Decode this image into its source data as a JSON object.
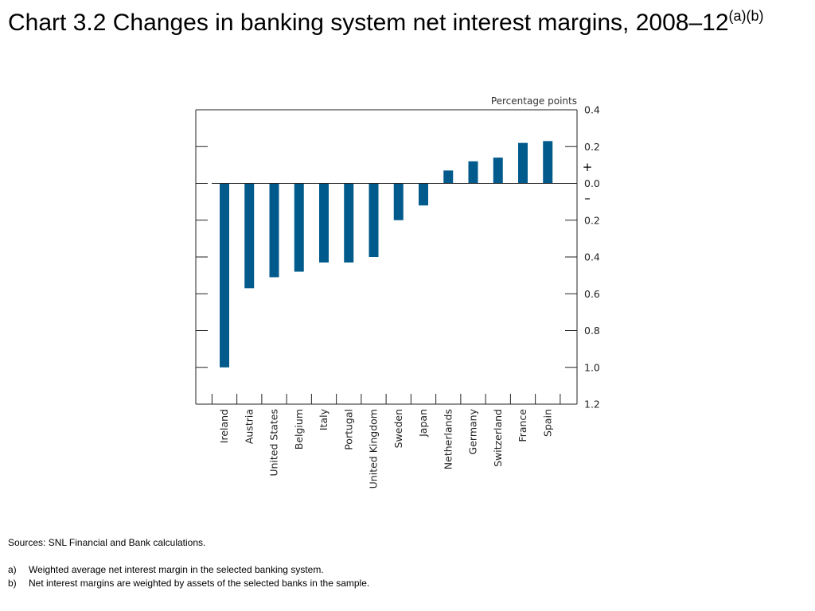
{
  "title": {
    "main": "Chart 3.2  Changes in banking system net interest margins, 2008–12",
    "superscript": "(a)(b)"
  },
  "chart_data": {
    "type": "bar",
    "unit_label": "Percentage points",
    "categories": [
      "Ireland",
      "Austria",
      "United States",
      "Belgium",
      "Italy",
      "Portugal",
      "United Kingdom",
      "Sweden",
      "Japan",
      "Netherlands",
      "Germany",
      "Switzerland",
      "France",
      "Spain"
    ],
    "values": [
      -1.0,
      -0.57,
      -0.51,
      -0.48,
      -0.43,
      -0.43,
      -0.4,
      -0.2,
      -0.12,
      0.07,
      0.12,
      0.14,
      0.22,
      0.23
    ],
    "ylim": [
      -1.2,
      0.4
    ],
    "yticks": [
      0.4,
      0.2,
      0.0,
      -0.2,
      -0.4,
      -0.6,
      -0.8,
      -1.0,
      -1.2
    ],
    "ytick_labels": [
      "0.4",
      "0.2",
      "0.0",
      "0.2",
      "0.4",
      "0.6",
      "0.8",
      "1.0",
      "1.2"
    ],
    "sign_labels": {
      "positive": "+",
      "negative": "–"
    },
    "bar_color": "#005a8c",
    "grid": false
  },
  "notes": {
    "sources": "Sources:  SNL Financial and Bank calculations.",
    "footnotes": [
      {
        "marker": "a)",
        "text": "Weighted average net interest margin in the selected banking system."
      },
      {
        "marker": "b)",
        "text": "Net interest margins are weighted by assets of the selected banks in the sample."
      }
    ]
  }
}
